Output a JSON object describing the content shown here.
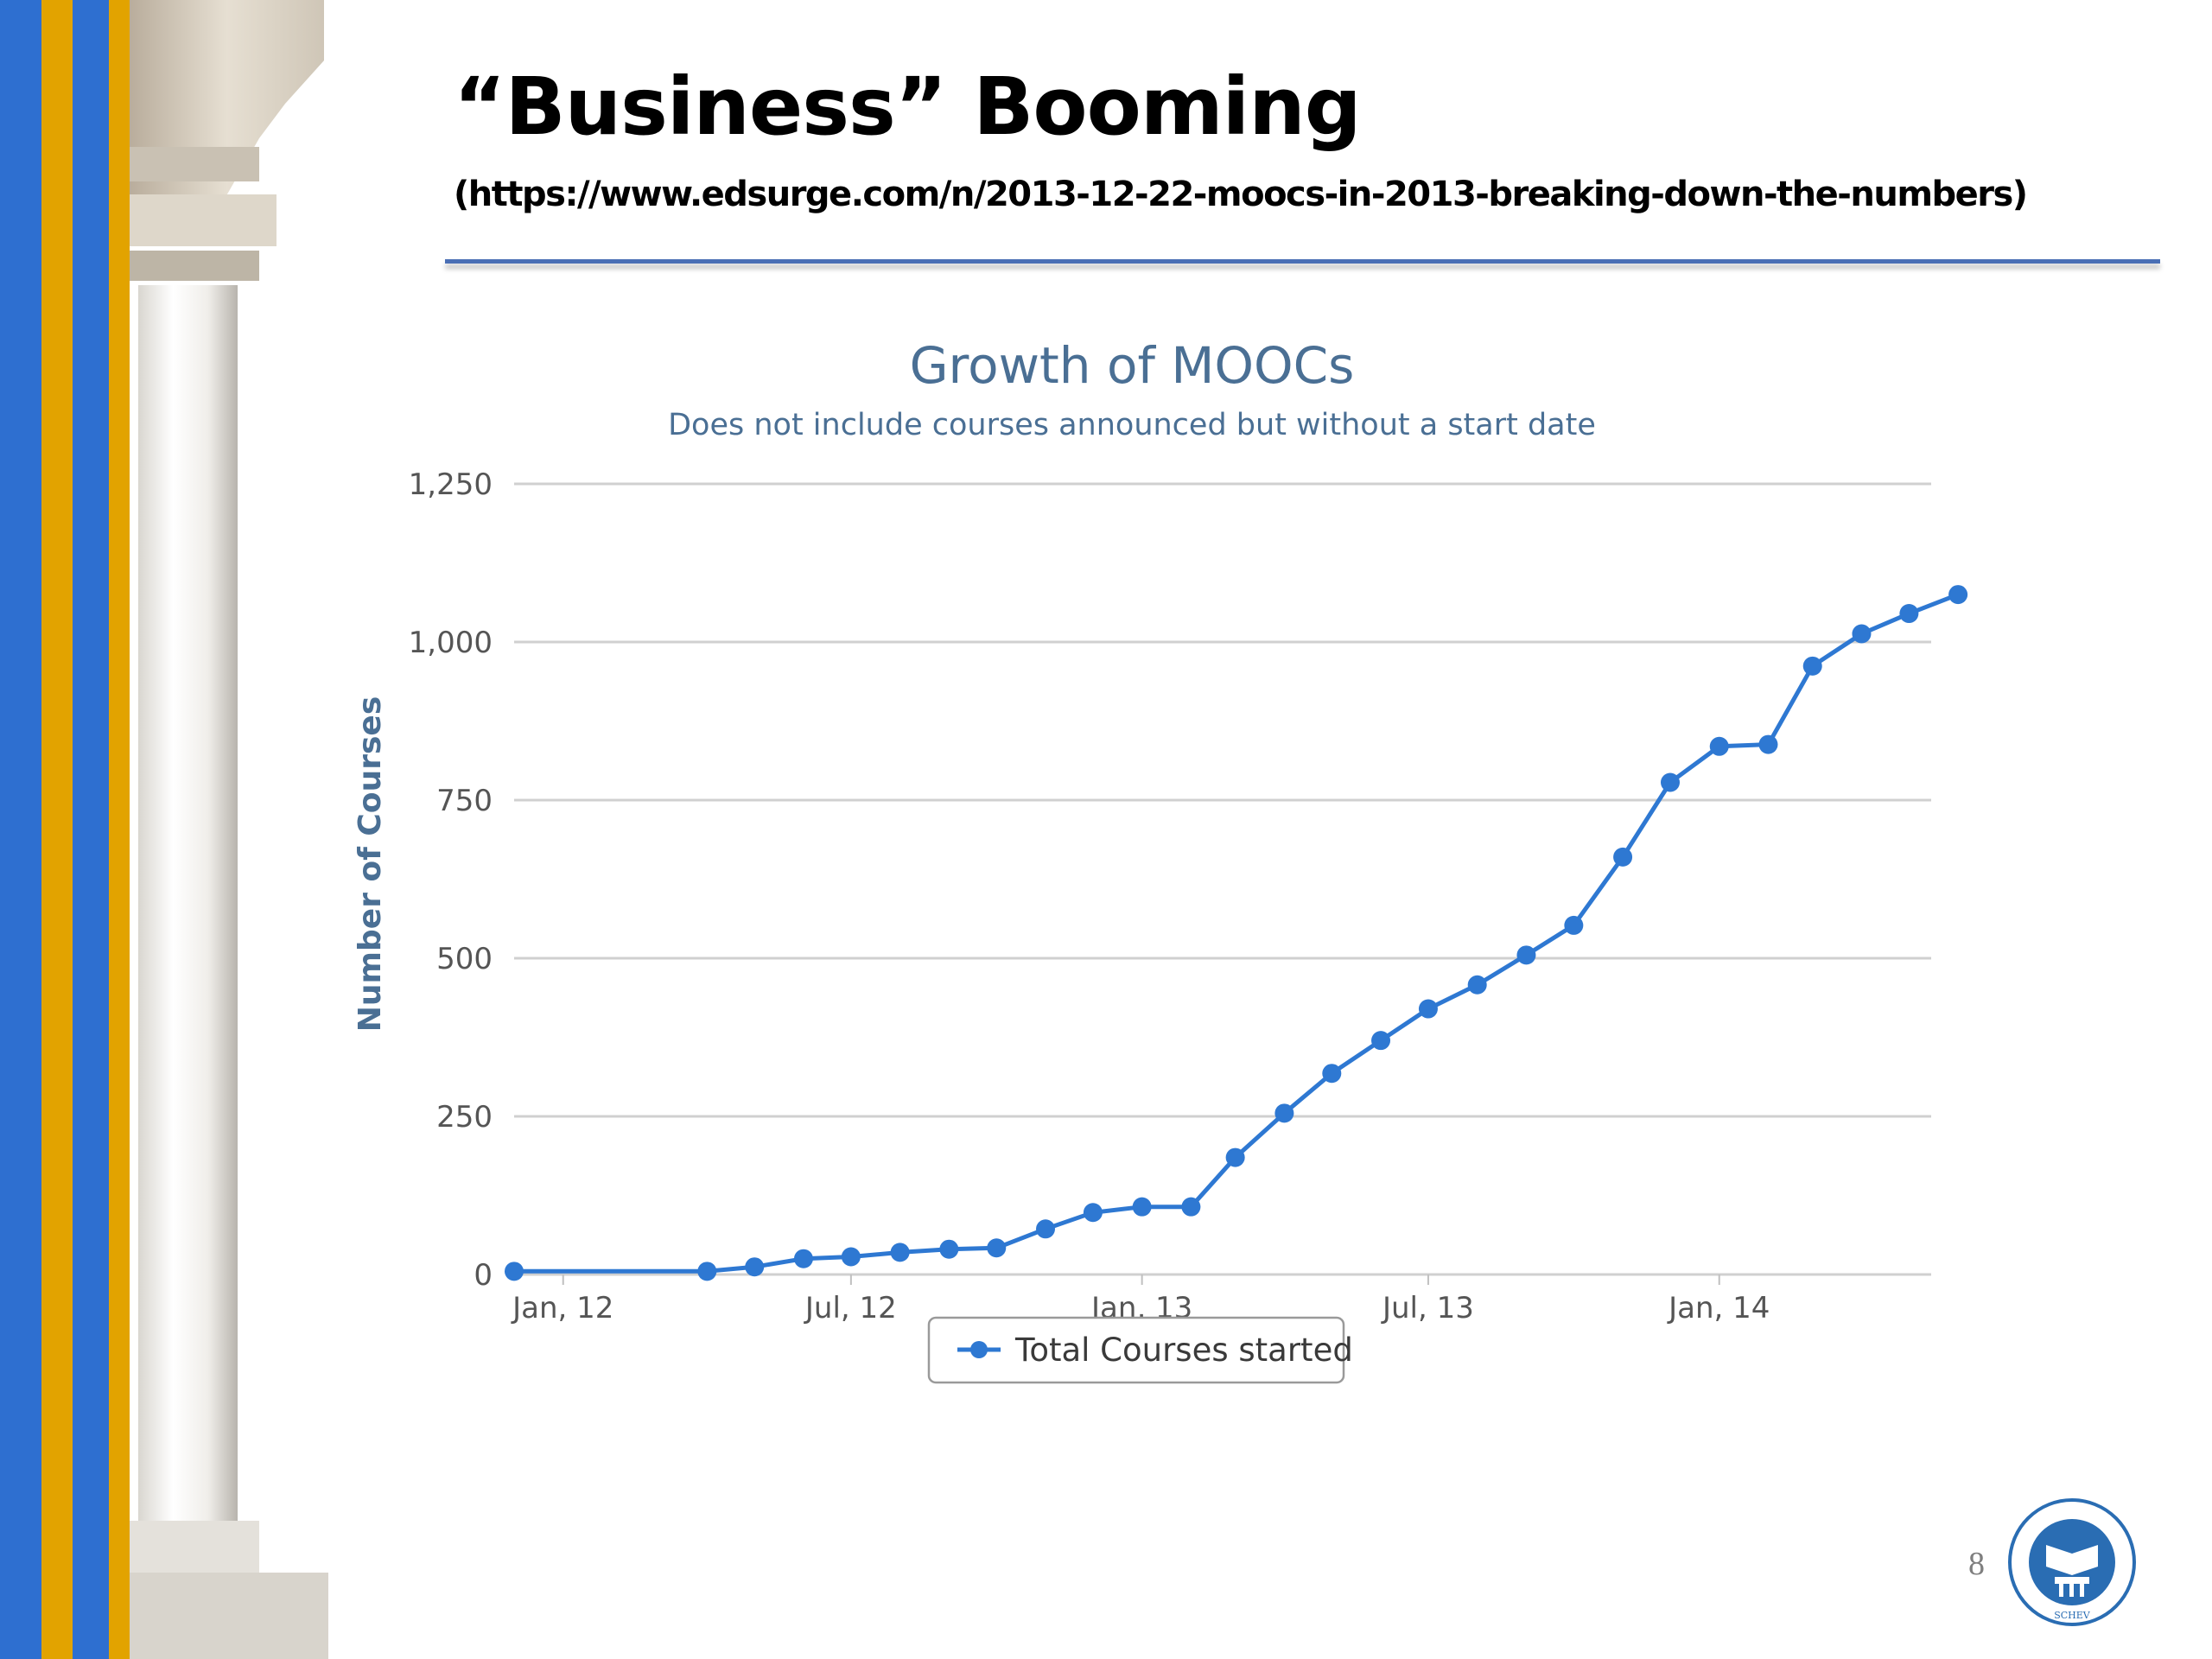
{
  "slide": {
    "title": "“Business” Booming",
    "source": "(https://www.edsurge.com/n/2013-12-22-moocs-in-2013-breaking-down-the-numbers)",
    "page_number": "8",
    "logo_text": "SCHEV"
  },
  "colors": {
    "series": "#2e78d2",
    "chart_text": "#4a6f94",
    "grid": "#d0d0d0",
    "stripe_blue": "#2e6fd0",
    "stripe_gold": "#e2a300",
    "rule": "#4a6fb5"
  },
  "chart_data": {
    "type": "line",
    "title": "Growth of MOOCs",
    "subtitle": "Does not include courses announced but without a start date",
    "ylabel": "Number of Courses",
    "xlabel": "",
    "ylim": [
      0,
      1250
    ],
    "yticks": [
      "0",
      "250",
      "500",
      "750",
      "1,000",
      "1,250"
    ],
    "xticks": [
      {
        "date": "2012-01-01",
        "label": "Jan, 12"
      },
      {
        "date": "2012-07-01",
        "label": "Jul, 12"
      },
      {
        "date": "2013-01-01",
        "label": "Jan, 13"
      },
      {
        "date": "2013-07-01",
        "label": "Jul, 13"
      },
      {
        "date": "2014-01-01",
        "label": "Jan, 14"
      }
    ],
    "x_range": [
      "2011-12-01",
      "2014-05-15"
    ],
    "grid": true,
    "legend": "bottom-center",
    "series": [
      {
        "name": "Total Courses started",
        "points": [
          {
            "x": "2011-12-01",
            "y": 5
          },
          {
            "x": "2012-04-01",
            "y": 5
          },
          {
            "x": "2012-05-01",
            "y": 12
          },
          {
            "x": "2012-06-01",
            "y": 25
          },
          {
            "x": "2012-07-01",
            "y": 28
          },
          {
            "x": "2012-08-01",
            "y": 35
          },
          {
            "x": "2012-09-01",
            "y": 40
          },
          {
            "x": "2012-10-01",
            "y": 42
          },
          {
            "x": "2012-11-01",
            "y": 72
          },
          {
            "x": "2012-12-01",
            "y": 98
          },
          {
            "x": "2013-01-01",
            "y": 107
          },
          {
            "x": "2013-02-01",
            "y": 107
          },
          {
            "x": "2013-03-01",
            "y": 185
          },
          {
            "x": "2013-04-01",
            "y": 255
          },
          {
            "x": "2013-05-01",
            "y": 318
          },
          {
            "x": "2013-06-01",
            "y": 370
          },
          {
            "x": "2013-07-01",
            "y": 420
          },
          {
            "x": "2013-08-01",
            "y": 458
          },
          {
            "x": "2013-09-01",
            "y": 505
          },
          {
            "x": "2013-10-01",
            "y": 552
          },
          {
            "x": "2013-11-01",
            "y": 660
          },
          {
            "x": "2013-12-01",
            "y": 778
          },
          {
            "x": "2014-01-01",
            "y": 835
          },
          {
            "x": "2014-02-01",
            "y": 838
          },
          {
            "x": "2014-03-01",
            "y": 962
          },
          {
            "x": "2014-04-01",
            "y": 1013
          },
          {
            "x": "2014-05-01",
            "y": 1045
          },
          {
            "x": "2014-06-01",
            "y": 1075
          }
        ]
      }
    ]
  }
}
